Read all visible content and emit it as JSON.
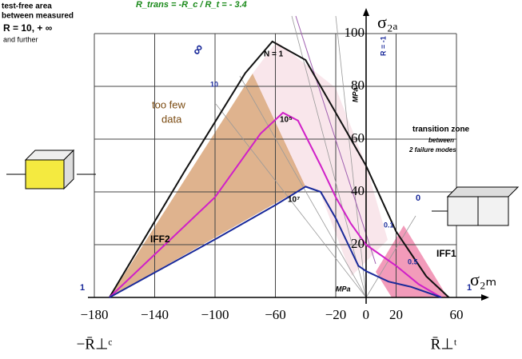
{
  "chart_data": {
    "type": "line",
    "title": "R_trans = -R_c / R_t = - 3.4",
    "x_label": "σ₂ₘ",
    "y_label": "σ₂ₐ",
    "x_left_label": "−R̄⊥ᶜ",
    "x_right_label": "R̄⊥ᵗ",
    "y_unit": "MPa",
    "x_unit": "MPa",
    "y_side_label": "R = -1",
    "xlim": [
      -180,
      60
    ],
    "ylim": [
      0,
      110
    ],
    "xticks": [
      {
        "value": -180,
        "label": "−180"
      },
      {
        "value": -140,
        "label": "−140"
      },
      {
        "value": -100,
        "label": "−100"
      },
      {
        "value": -60,
        "label": "−60"
      },
      {
        "value": -20,
        "label": "−20"
      },
      0,
      20,
      60
    ],
    "yticks": [
      20,
      40,
      60,
      80,
      100
    ],
    "grid": true,
    "series": [
      {
        "name": "N = 1",
        "color": "#111111",
        "x": [
          -170,
          -120,
          -80,
          -62,
          -40,
          -20,
          0,
          20,
          40,
          55
        ],
        "values": [
          0,
          48,
          85,
          97,
          90,
          70,
          50,
          25,
          8,
          0
        ]
      },
      {
        "name": "10⁵",
        "color": "#d020c8",
        "x": [
          -170,
          -100,
          -70,
          -55,
          -45,
          -30,
          -20,
          -10,
          0,
          20,
          35,
          50
        ],
        "values": [
          0,
          38,
          62,
          70,
          67,
          50,
          38,
          28,
          20,
          12,
          5,
          0
        ]
      },
      {
        "name": "10⁷",
        "color": "#1a2a9a",
        "x": [
          -170,
          -100,
          -60,
          -40,
          -30,
          -20,
          -5,
          0,
          15,
          30,
          50
        ],
        "values": [
          0,
          22,
          35,
          42,
          40,
          30,
          12,
          10,
          6,
          4,
          0
        ]
      }
    ],
    "annotations": [
      "test-free area",
      "between measured",
      "R = 10, + ∞",
      "and further",
      "too few",
      "data",
      "IFF2",
      "IFF1",
      "transition zone",
      "between",
      "2 failure modes",
      "0.1",
      "0",
      "0.5",
      "1",
      "1",
      "∞",
      "10"
    ]
  }
}
